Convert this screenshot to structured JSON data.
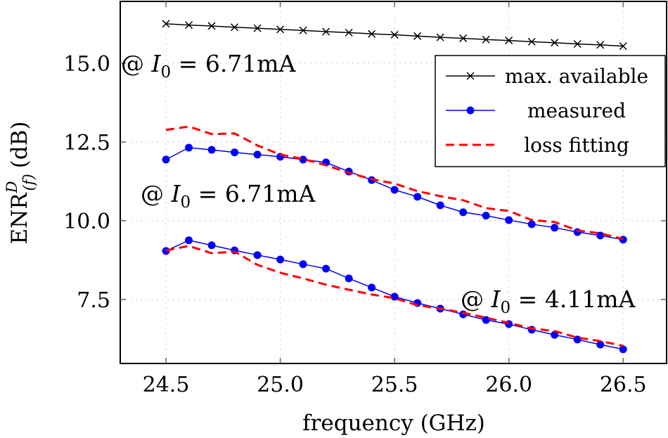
{
  "chart_data": {
    "type": "line",
    "title": "",
    "xlabel": "frequency (GHz)",
    "ylabel": {
      "main": "ENR",
      "sup": "D",
      "sub": "(f)",
      "unit": "(dB)"
    },
    "xlim": [
      24.3,
      26.69
    ],
    "ylim": [
      5.47,
      16.96
    ],
    "xticks": [
      24.5,
      25.0,
      25.5,
      26.0,
      26.5
    ],
    "xtick_labels": [
      "24.5",
      "25.0",
      "25.5",
      "26.0",
      "26.5"
    ],
    "yticks": [
      7.5,
      10.0,
      12.5,
      15.0
    ],
    "ytick_labels": [
      "7.5",
      "10.0",
      "12.5",
      "15.0"
    ],
    "grid": "dotted",
    "legend_position": "top-right",
    "legend": [
      {
        "label": "max. available",
        "color": "#000000",
        "marker": "x",
        "style": "solid"
      },
      {
        "label": "measured",
        "color": "#0000ff",
        "marker": "dot",
        "style": "solid"
      },
      {
        "label": "loss fitting",
        "color": "#ff0000",
        "marker": "none",
        "style": "dashed"
      }
    ],
    "x": [
      24.5,
      24.6,
      24.7,
      24.8,
      24.9,
      25.0,
      25.1,
      25.2,
      25.3,
      25.4,
      25.5,
      25.6,
      25.7,
      25.8,
      25.9,
      26.0,
      26.1,
      26.2,
      26.3,
      26.4,
      26.5
    ],
    "series": [
      {
        "name": "max. available",
        "legend": 0,
        "values": [
          16.25,
          16.21,
          16.18,
          16.14,
          16.11,
          16.07,
          16.04,
          16.0,
          15.97,
          15.93,
          15.9,
          15.86,
          15.82,
          15.79,
          15.75,
          15.72,
          15.68,
          15.65,
          15.61,
          15.58,
          15.54
        ]
      },
      {
        "name": "measured",
        "legend": 1,
        "values": [
          11.94,
          12.32,
          12.25,
          12.17,
          12.1,
          12.03,
          11.94,
          11.85,
          11.56,
          11.29,
          10.98,
          10.76,
          10.49,
          10.27,
          10.16,
          10.02,
          9.89,
          9.78,
          9.64,
          9.53,
          9.4
        ]
      },
      {
        "name": "loss fitting",
        "legend": 2,
        "values": [
          12.88,
          12.99,
          12.75,
          12.77,
          12.39,
          12.1,
          11.96,
          11.76,
          11.52,
          11.32,
          11.18,
          10.94,
          10.78,
          10.65,
          10.4,
          10.31,
          10.02,
          9.96,
          9.69,
          9.6,
          9.42
        ]
      },
      {
        "name": "measured",
        "legend": 1,
        "values": [
          9.04,
          9.38,
          9.22,
          9.06,
          8.91,
          8.77,
          8.62,
          8.48,
          8.17,
          7.88,
          7.59,
          7.39,
          7.21,
          7.03,
          6.85,
          6.72,
          6.54,
          6.38,
          6.23,
          6.07,
          5.92
        ]
      },
      {
        "name": "loss fitting",
        "legend": 2,
        "values": [
          9.06,
          9.2,
          8.97,
          9.02,
          8.6,
          8.35,
          8.17,
          7.97,
          7.81,
          7.66,
          7.54,
          7.32,
          7.21,
          7.08,
          6.92,
          6.76,
          6.58,
          6.5,
          6.29,
          6.18,
          6.03
        ]
      }
    ],
    "annotations": [
      {
        "at": "@",
        "var": "I",
        "sub": "0",
        "rest": " = 6.71mA"
      },
      {
        "at": "@",
        "var": "I",
        "sub": "0",
        "rest": " = 6.71mA"
      },
      {
        "at": "@",
        "var": "I",
        "sub": "0",
        "rest": " = 4.11mA"
      }
    ]
  }
}
